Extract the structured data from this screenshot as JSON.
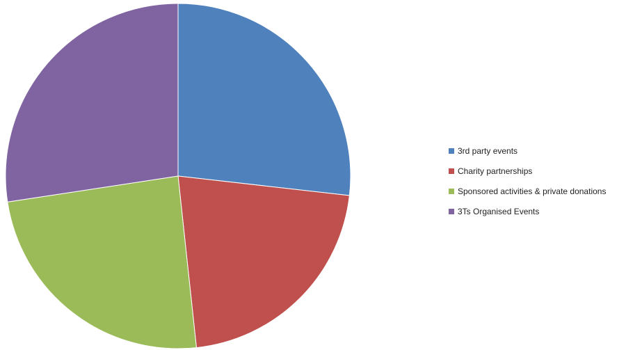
{
  "chart_data": {
    "type": "pie",
    "title": "",
    "series": [
      {
        "values": [
          26.8,
          21.5,
          24.3,
          27.4
        ]
      }
    ],
    "categories": [
      "3rd party events",
      "Charity partnerships",
      "Sponsored activities & private donations",
      "3Ts Organised Events"
    ],
    "colors": [
      "#4F81BD",
      "#C0504D",
      "#9BBB59",
      "#8064A2"
    ],
    "start_angle_deg": 0,
    "direction": "clockwise",
    "legend_position": "right",
    "data_labels": false
  }
}
